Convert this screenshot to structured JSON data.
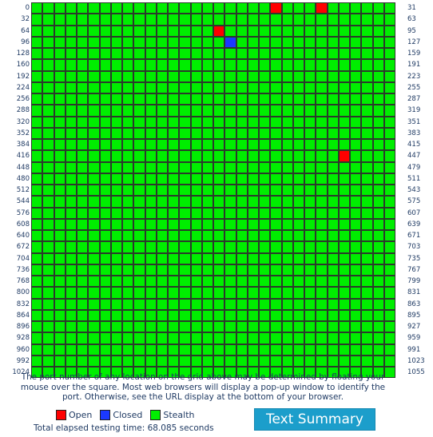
{
  "grid": {
    "columns": 32,
    "rows": 33,
    "colors": {
      "open": "#ff0000",
      "closed": "#1b39ff",
      "stealth": "#00ee00"
    },
    "left_labels": [
      "0",
      "32",
      "64",
      "96",
      "128",
      "160",
      "192",
      "224",
      "256",
      "288",
      "320",
      "352",
      "384",
      "416",
      "448",
      "480",
      "512",
      "544",
      "576",
      "608",
      "640",
      "672",
      "704",
      "736",
      "768",
      "800",
      "832",
      "864",
      "896",
      "928",
      "960",
      "992",
      "1024"
    ],
    "right_labels": [
      "31",
      "63",
      "95",
      "127",
      "159",
      "191",
      "223",
      "255",
      "287",
      "319",
      "351",
      "383",
      "415",
      "447",
      "479",
      "511",
      "543",
      "575",
      "607",
      "639",
      "671",
      "703",
      "735",
      "767",
      "799",
      "831",
      "863",
      "895",
      "927",
      "959",
      "991",
      "1023",
      "1055"
    ],
    "open_ports": [
      21,
      25,
      80,
      443
    ],
    "closed_ports": [
      113
    ]
  },
  "note": "The port number of any location on the grid above may be determined by floating your mouse over the square. Most web browsers will display a pop-up window to identify the port. Otherwise, see the URL display at the bottom of your browser.",
  "legend": {
    "open_label": "Open",
    "closed_label": "Closed",
    "stealth_label": "Stealth"
  },
  "elapsed": "Total elapsed testing time: 68.085 seconds",
  "button": {
    "label": "Text Summary"
  }
}
